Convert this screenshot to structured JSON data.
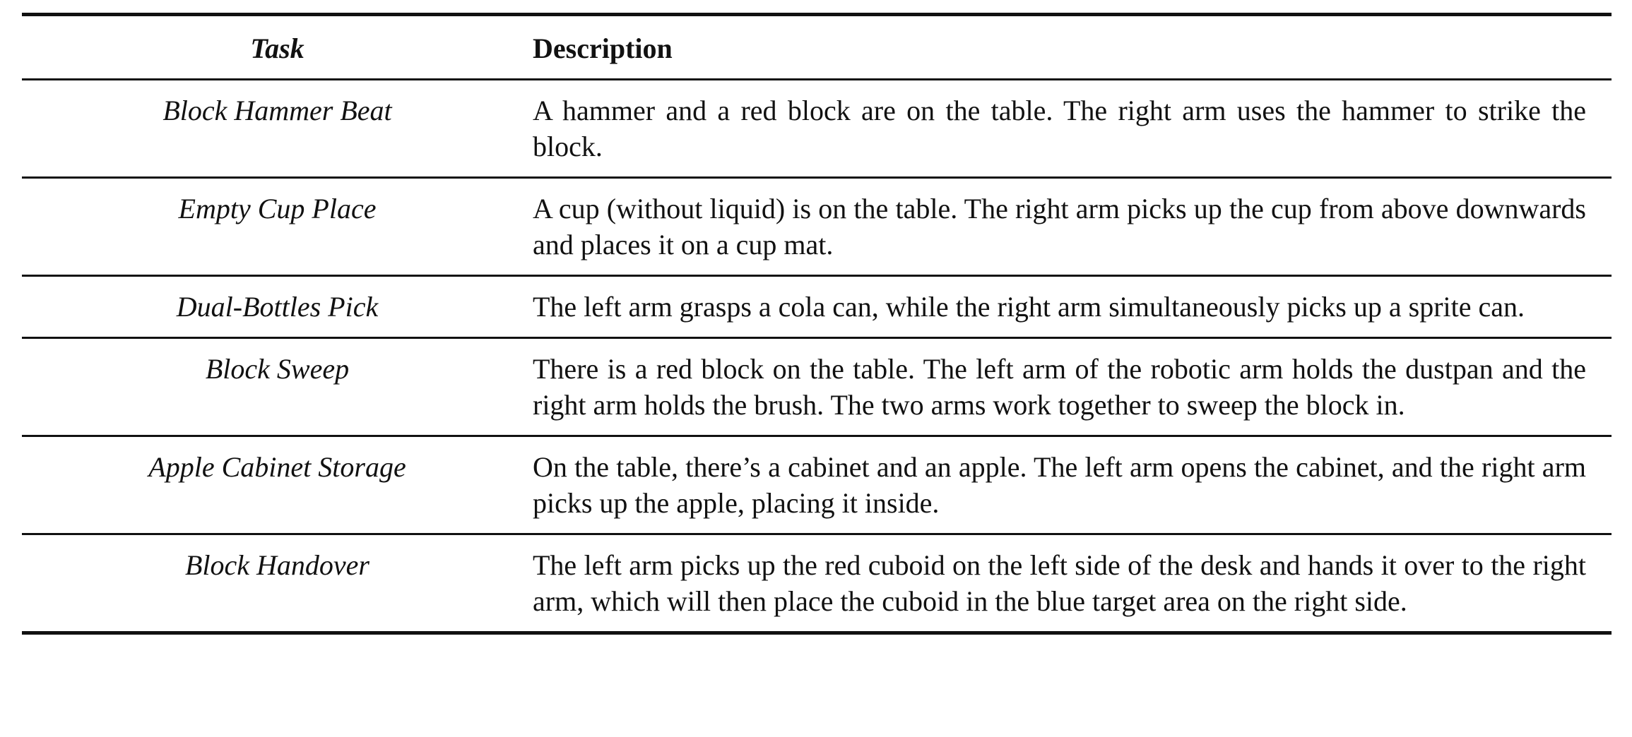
{
  "table": {
    "headers": {
      "task": "Task",
      "description": "Description"
    },
    "rows": [
      {
        "task": "Block Hammer Beat",
        "description": "A hammer and a red block are on the table.  The right arm uses the hammer to strike the block."
      },
      {
        "task": "Empty Cup Place",
        "description": "A cup (without liquid) is on the table. The right arm picks up the cup from above downwards and places it on a cup mat."
      },
      {
        "task": "Dual-Bottles Pick",
        "description": "The left arm grasps a cola can, while the right arm simultaneously picks up a sprite can."
      },
      {
        "task": "Block Sweep",
        "description": "There is a red block on the table. The left arm of the robotic arm holds the dustpan and the right arm holds the brush. The two arms work together to sweep the block in."
      },
      {
        "task": "Apple Cabinet Storage",
        "description": "On the table, there’s a cabinet and an apple. The left arm opens the cabinet, and the right arm picks up the apple, placing it inside."
      },
      {
        "task": "Block Handover",
        "description": "The left arm picks up the red cuboid on the left side of the desk and hands it over to the right arm, which will then place the cuboid in the blue target area on the right side."
      }
    ]
  }
}
